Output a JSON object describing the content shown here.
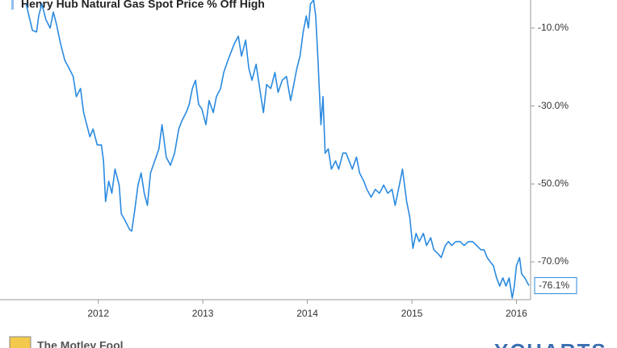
{
  "chart_data": {
    "type": "line",
    "x": [
      2011.31,
      2011.37,
      2011.41,
      2011.43,
      2011.46,
      2011.5,
      2011.54,
      2011.57,
      2011.6,
      2011.64,
      2011.68,
      2011.72,
      2011.76,
      2011.79,
      2011.83,
      2011.86,
      2011.89,
      2011.92,
      2011.95,
      2011.99,
      2012.03,
      2012.05,
      2012.07,
      2012.1,
      2012.13,
      2012.16,
      2012.2,
      2012.22,
      2012.26,
      2012.3,
      2012.32,
      2012.35,
      2012.38,
      2012.41,
      2012.44,
      2012.47,
      2012.5,
      2012.54,
      2012.58,
      2012.61,
      2012.65,
      2012.69,
      2012.73,
      2012.77,
      2012.8,
      2012.84,
      2012.87,
      2012.9,
      2012.93,
      2012.96,
      2012.99,
      2013.03,
      2013.06,
      2013.1,
      2013.13,
      2013.17,
      2013.2,
      2013.24,
      2013.27,
      2013.3,
      2013.34,
      2013.37,
      2013.41,
      2013.44,
      2013.47,
      2013.51,
      2013.55,
      2013.58,
      2013.61,
      2013.65,
      2013.69,
      2013.72,
      2013.76,
      2013.8,
      2013.84,
      2013.87,
      2013.9,
      2013.93,
      2013.96,
      2013.99,
      2014.01,
      2014.03,
      2014.06,
      2014.08,
      2014.1,
      2014.13,
      2014.15,
      2014.17,
      2014.2,
      2014.23,
      2014.27,
      2014.3,
      2014.34,
      2014.37,
      2014.4,
      2014.43,
      2014.47,
      2014.5,
      2014.54,
      2014.57,
      2014.61,
      2014.65,
      2014.69,
      2014.73,
      2014.77,
      2014.81,
      2014.84,
      2014.88,
      2014.91,
      2014.95,
      2014.98,
      2015.01,
      2015.04,
      2015.07,
      2015.11,
      2015.14,
      2015.18,
      2015.21,
      2015.25,
      2015.28,
      2015.32,
      2015.35,
      2015.38,
      2015.42,
      2015.46,
      2015.5,
      2015.54,
      2015.58,
      2015.62,
      2015.66,
      2015.69,
      2015.72,
      2015.75,
      2015.78,
      2015.81,
      2015.84,
      2015.87,
      2015.9,
      2015.93,
      2015.96,
      2015.98,
      2016.0,
      2016.03,
      2016.05,
      2016.08,
      2016.12
    ],
    "series": [
      {
        "name": "Henry Hub Natural Gas Spot Price % Off High",
        "color": "#2a8ae0",
        "values": [
          -3.8,
          -10.6,
          -11.0,
          -6.9,
          -3.8,
          -7.9,
          -10.0,
          -5.9,
          -9.0,
          -14.1,
          -18.3,
          -20.3,
          -22.4,
          -27.6,
          -25.5,
          -31.7,
          -34.8,
          -37.9,
          -35.9,
          -40.0,
          -40.0,
          -44.1,
          -54.5,
          -49.3,
          -52.4,
          -46.2,
          -50.3,
          -57.6,
          -59.6,
          -61.7,
          -62.1,
          -56.5,
          -50.3,
          -47.2,
          -52.4,
          -55.5,
          -47.2,
          -44.1,
          -41.0,
          -34.8,
          -43.1,
          -45.2,
          -42.1,
          -35.9,
          -33.8,
          -31.7,
          -29.6,
          -25.5,
          -23.4,
          -29.6,
          -30.7,
          -34.8,
          -28.6,
          -31.7,
          -27.6,
          -25.5,
          -21.4,
          -18.3,
          -16.2,
          -14.1,
          -12.1,
          -17.2,
          -13.1,
          -20.3,
          -23.4,
          -19.3,
          -26.5,
          -31.7,
          -24.5,
          -25.5,
          -21.4,
          -26.5,
          -23.4,
          -22.4,
          -28.6,
          -24.5,
          -20.3,
          -17.2,
          -11.0,
          -6.9,
          -10.0,
          -3.8,
          -2.8,
          -6.9,
          -17.2,
          -34.8,
          -27.6,
          -42.1,
          -41.0,
          -46.2,
          -44.1,
          -46.2,
          -42.1,
          -42.1,
          -44.1,
          -46.2,
          -43.1,
          -47.2,
          -49.3,
          -51.4,
          -53.4,
          -51.4,
          -52.4,
          -50.3,
          -52.4,
          -51.4,
          -55.5,
          -50.3,
          -46.2,
          -54.5,
          -58.6,
          -66.5,
          -62.7,
          -64.8,
          -62.7,
          -65.8,
          -63.8,
          -66.9,
          -67.9,
          -68.9,
          -65.8,
          -64.8,
          -65.8,
          -64.8,
          -64.8,
          -65.8,
          -64.8,
          -64.8,
          -65.8,
          -66.9,
          -66.9,
          -68.9,
          -70.0,
          -71.0,
          -74.1,
          -76.2,
          -74.1,
          -76.2,
          -74.1,
          -79.3,
          -76.2,
          -71.0,
          -68.9,
          -73.1,
          -74.1,
          -76.1
        ],
        "value_labels": [
          null,
          null,
          null,
          null,
          null,
          null,
          null,
          null,
          null,
          null,
          null,
          null,
          null,
          null,
          null,
          null,
          null,
          null,
          null,
          null,
          null,
          null,
          null,
          null,
          null,
          null,
          null,
          null,
          null,
          null,
          null,
          null,
          null,
          null,
          null,
          null,
          null,
          null,
          null,
          null,
          null,
          null,
          null,
          null,
          null,
          null,
          null,
          null,
          null,
          null,
          null,
          null,
          null,
          null,
          null,
          null,
          null,
          null,
          null,
          null,
          null,
          null,
          null,
          null,
          null,
          null,
          null,
          null,
          null,
          null,
          null,
          null,
          null,
          null,
          null,
          null,
          null,
          null,
          null,
          null,
          null,
          null,
          null,
          null,
          null,
          null,
          null,
          null,
          null,
          null,
          null,
          null,
          null,
          null,
          null,
          null,
          null,
          null,
          null,
          null,
          null,
          null,
          null,
          null,
          null,
          null,
          null,
          null,
          null,
          null,
          null,
          null,
          null,
          null,
          null,
          null,
          null,
          null,
          null,
          null,
          null,
          null,
          null,
          null,
          null,
          null,
          null,
          null,
          null,
          null,
          null,
          null,
          null,
          null,
          null,
          null,
          null,
          null,
          null,
          null,
          null,
          null,
          null,
          null,
          null,
          "-76.1%"
        ]
      }
    ],
    "xlim": [
      2011.06,
      2016.12
    ],
    "xticks": [
      2012,
      2013,
      2014,
      2015,
      2016
    ],
    "ylim": [
      -79.7,
      -2.8
    ],
    "yticks": [
      {
        "value": -10,
        "label": "-10.0%"
      },
      {
        "value": -30,
        "label": "-30.0%"
      },
      {
        "value": -50,
        "label": "-50.0%"
      },
      {
        "value": -70,
        "label": "-70.0%"
      }
    ],
    "grid": false,
    "footer": {
      "source": "The Motley Fool",
      "brand": "YCHARTS"
    }
  }
}
